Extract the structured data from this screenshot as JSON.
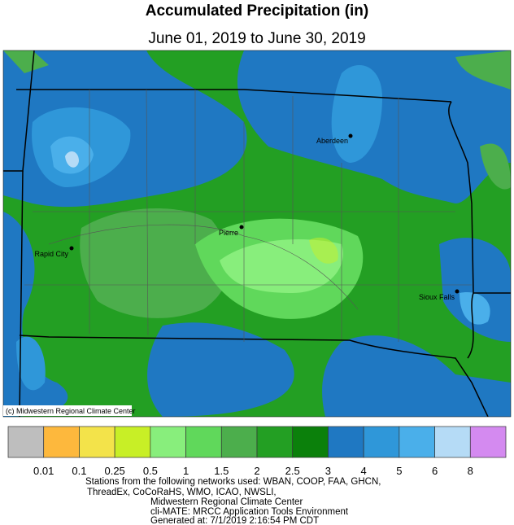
{
  "header": {
    "title": "Accumulated Precipitation (in)",
    "subtitle": "June 01, 2019 to June 30, 2019"
  },
  "map": {
    "cities": [
      "Aberdeen",
      "Pierre",
      "Rapid City",
      "Sioux Falls"
    ],
    "credit": "(c) Midwestern Regional Climate Center"
  },
  "legend": {
    "colors": [
      "#bebebe",
      "#fdb83d",
      "#f3e34a",
      "#c8ef26",
      "#88ee7c",
      "#60d85b",
      "#4cae4c",
      "#239f23",
      "#0b800b",
      "#1f78c2",
      "#2f97d9",
      "#4aafea",
      "#b5dbf6",
      "#d48af0"
    ],
    "labels": [
      "0.01",
      "0.1",
      "0.25",
      "0.5",
      "1",
      "1.5",
      "2",
      "2.5",
      "3",
      "4",
      "5",
      "6",
      "8"
    ]
  },
  "footer": {
    "lines": [
      "Stations from the following networks used: WBAN, COOP, FAA, GHCN,",
      "ThreadEx, CoCoRaHS, WMO, ICAO, NWSLI,",
      "Midwestern Regional Climate Center",
      "cli-MATE: MRCC Application Tools Environment",
      "Generated at: 7/1/2019 2:16:54 PM CDT"
    ]
  }
}
